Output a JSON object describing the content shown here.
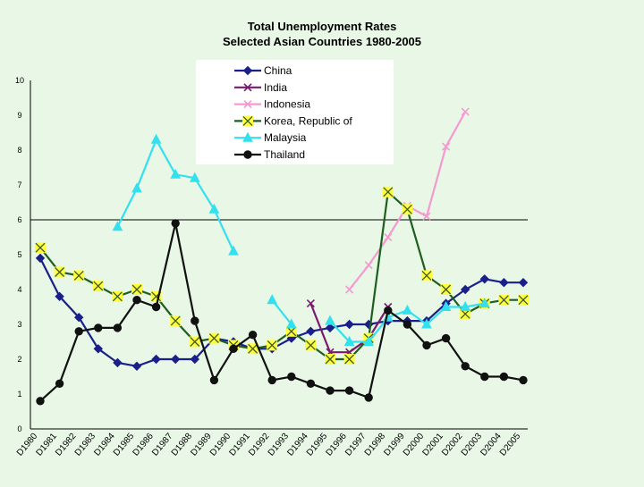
{
  "chart_data": {
    "type": "line",
    "title": "Total Unemployment Rates",
    "subtitle": "Selected Asian Countries 1980-2005",
    "xlabel": "",
    "ylabel": "",
    "ylim": [
      0,
      10
    ],
    "yticks": [
      0,
      1,
      2,
      3,
      4,
      5,
      6,
      7,
      8,
      9,
      10
    ],
    "grid": false,
    "reference_line": 6,
    "legend_position": "top-center",
    "categories": [
      "D1980",
      "D1981",
      "D1982",
      "D1983",
      "D1984",
      "D1985",
      "D1986",
      "D1987",
      "D1988",
      "D1989",
      "D1990",
      "D1991",
      "D1992",
      "D1993",
      "D1994",
      "D1995",
      "D1996",
      "D1997",
      "D1998",
      "D1999",
      "D2000",
      "D2001",
      "D2002",
      "D2003",
      "D2004",
      "D2005"
    ],
    "series": [
      {
        "name": "China",
        "color": "#1a1f8a",
        "marker": "diamond",
        "values": [
          4.9,
          3.8,
          3.2,
          2.3,
          1.9,
          1.8,
          2.0,
          2.0,
          2.0,
          2.6,
          2.5,
          2.3,
          2.3,
          2.6,
          2.8,
          2.9,
          3.0,
          3.0,
          3.1,
          3.1,
          3.1,
          3.6,
          4.0,
          4.3,
          4.2,
          4.2
        ]
      },
      {
        "name": "India",
        "color": "#7a1a6e",
        "marker": "x",
        "values": [
          null,
          null,
          null,
          null,
          null,
          null,
          null,
          null,
          null,
          null,
          null,
          null,
          null,
          null,
          3.6,
          2.2,
          2.2,
          2.6,
          3.5,
          null,
          null,
          null,
          null,
          null,
          null,
          null
        ]
      },
      {
        "name": "Indonesia",
        "color": "#f59ad0",
        "marker": "x",
        "values": [
          null,
          null,
          null,
          null,
          null,
          null,
          null,
          null,
          null,
          null,
          null,
          null,
          null,
          null,
          null,
          null,
          4.0,
          4.7,
          5.5,
          6.4,
          6.1,
          8.1,
          9.1,
          null,
          null,
          null
        ]
      },
      {
        "name": "Korea, Republic of",
        "color": "#1e5e1e",
        "marker": "square-x",
        "values": [
          5.2,
          4.5,
          4.4,
          4.1,
          3.8,
          4.0,
          3.8,
          3.1,
          2.5,
          2.6,
          2.4,
          2.3,
          2.4,
          2.8,
          2.4,
          2.0,
          2.0,
          2.6,
          6.8,
          6.3,
          4.4,
          4.0,
          3.3,
          3.6,
          3.7,
          3.7
        ]
      },
      {
        "name": "Malaysia",
        "color": "#33e0ee",
        "marker": "triangle",
        "values": [
          null,
          null,
          null,
          null,
          5.8,
          6.9,
          8.3,
          7.3,
          7.2,
          6.3,
          5.1,
          null,
          3.7,
          3.0,
          null,
          3.1,
          2.5,
          2.5,
          3.2,
          3.4,
          3.0,
          3.5,
          3.5,
          3.6,
          null,
          null
        ]
      },
      {
        "name": "Thailand",
        "color": "#111111",
        "marker": "circle",
        "values": [
          0.8,
          1.3,
          2.8,
          2.9,
          2.9,
          3.7,
          3.5,
          5.9,
          3.1,
          1.4,
          2.3,
          2.7,
          1.4,
          1.5,
          1.3,
          1.1,
          1.1,
          0.9,
          3.4,
          3.0,
          2.4,
          2.6,
          1.8,
          1.5,
          1.5,
          1.4
        ]
      }
    ]
  }
}
